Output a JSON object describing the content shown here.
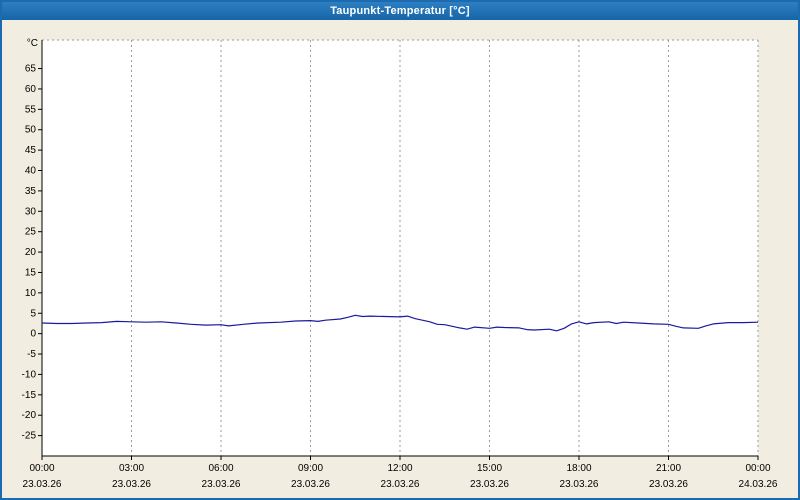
{
  "window": {
    "title": "Taupunkt-Temperatur [°C]"
  },
  "chart_data": {
    "type": "line",
    "title": "Taupunkt-Temperatur [°C]",
    "xlabel": "",
    "ylabel": "°C",
    "ylim": [
      -30,
      72
    ],
    "xlim_hours": [
      0,
      24
    ],
    "grid": "vertical-dashed",
    "legend": "none",
    "y_ticks": [
      65,
      60,
      55,
      50,
      45,
      40,
      35,
      30,
      25,
      20,
      15,
      10,
      5,
      0,
      -5,
      -10,
      -15,
      -20,
      -25
    ],
    "x_ticks": [
      {
        "time": "00:00",
        "date": "23.03.26"
      },
      {
        "time": "03:00",
        "date": "23.03.26"
      },
      {
        "time": "06:00",
        "date": "23.03.26"
      },
      {
        "time": "09:00",
        "date": "23.03.26"
      },
      {
        "time": "12:00",
        "date": "23.03.26"
      },
      {
        "time": "15:00",
        "date": "23.03.26"
      },
      {
        "time": "18:00",
        "date": "23.03.26"
      },
      {
        "time": "21:00",
        "date": "23.03.26"
      },
      {
        "time": "00:00",
        "date": "24.03.26"
      }
    ],
    "series": [
      {
        "name": "Taupunkt-Temperatur",
        "color": "#1a1a9e",
        "x": [
          0,
          0.5,
          1,
          1.5,
          2,
          2.5,
          3,
          3.5,
          4,
          4.5,
          5,
          5.5,
          6,
          6.25,
          6.75,
          7.25,
          8,
          8.5,
          9,
          9.25,
          9.5,
          10,
          10.25,
          10.5,
          10.75,
          11,
          11.5,
          12,
          12.25,
          12.5,
          13,
          13.25,
          13.5,
          14,
          14.25,
          14.5,
          15,
          15.25,
          15.5,
          16,
          16.25,
          16.5,
          17,
          17.25,
          17.5,
          17.75,
          18,
          18.25,
          18.5,
          19,
          19.25,
          19.5,
          20,
          20.5,
          21,
          21.25,
          21.5,
          22,
          22.25,
          22.5,
          23,
          23.5,
          24
        ],
        "values": [
          2.6,
          2.5,
          2.5,
          2.6,
          2.7,
          3.0,
          2.9,
          2.8,
          2.9,
          2.6,
          2.3,
          2.1,
          2.2,
          1.9,
          2.3,
          2.6,
          2.8,
          3.1,
          3.2,
          3.0,
          3.3,
          3.6,
          4.0,
          4.5,
          4.2,
          4.3,
          4.2,
          4.1,
          4.3,
          3.7,
          2.9,
          2.3,
          2.2,
          1.4,
          1.1,
          1.6,
          1.3,
          1.6,
          1.5,
          1.4,
          1.0,
          0.9,
          1.1,
          0.7,
          1.3,
          2.4,
          2.9,
          2.4,
          2.7,
          2.9,
          2.5,
          2.8,
          2.6,
          2.4,
          2.3,
          1.8,
          1.4,
          1.3,
          1.9,
          2.4,
          2.7,
          2.7,
          2.8
        ]
      }
    ],
    "colors": {
      "titlebar": "#1565a8",
      "window_border": "#1c6bb0",
      "background": "#f1eee1",
      "plot_background": "#ffffff",
      "grid": "#9a9a9a",
      "axis": "#000000",
      "line": "#1a1a9e",
      "title_text": "#ffffff"
    }
  }
}
